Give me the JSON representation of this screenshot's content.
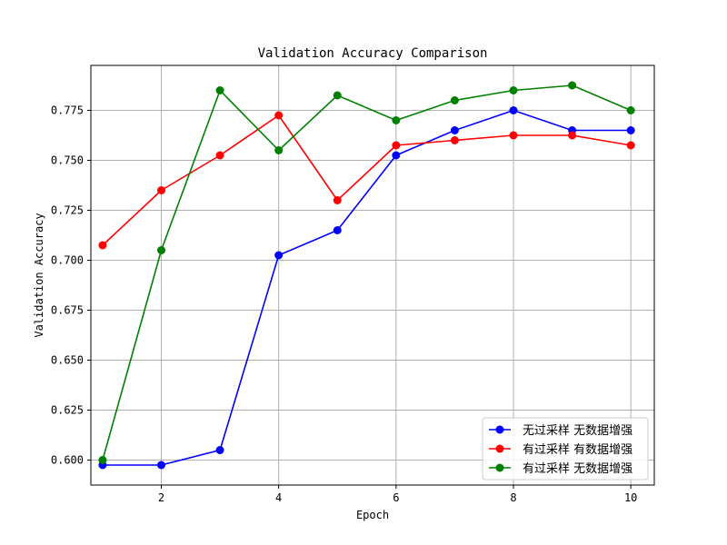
{
  "chart_data": {
    "type": "line",
    "title": "Validation Accuracy Comparison",
    "xlabel": "Epoch",
    "ylabel": "Validation Accuracy",
    "xlim": [
      0.8,
      10.4
    ],
    "ylim": [
      0.5875,
      0.7975
    ],
    "xticks": [
      2,
      4,
      6,
      8,
      10
    ],
    "yticks": [
      0.6,
      0.625,
      0.65,
      0.675,
      0.7,
      0.725,
      0.75,
      0.775
    ],
    "ytick_labels": [
      "0.600",
      "0.625",
      "0.650",
      "0.675",
      "0.700",
      "0.725",
      "0.750",
      "0.775"
    ],
    "grid": true,
    "legend_position": "bottom-right",
    "x": [
      1,
      2,
      3,
      4,
      5,
      6,
      7,
      8,
      9,
      10
    ],
    "series": [
      {
        "name": "无过采样 无数据增强",
        "color": "#0000ff",
        "values": [
          0.5975,
          0.5975,
          0.605,
          0.7025,
          0.715,
          0.7525,
          0.765,
          0.775,
          0.765,
          0.765
        ]
      },
      {
        "name": "有过采样 有数据增强",
        "color": "#ff0000",
        "values": [
          0.7075,
          0.735,
          0.7525,
          0.7725,
          0.73,
          0.7575,
          0.76,
          0.7625,
          0.7625,
          0.7575
        ]
      },
      {
        "name": "有过采样 无数据增强",
        "color": "#008000",
        "values": [
          0.6,
          0.705,
          0.785,
          0.755,
          0.7825,
          0.77,
          0.78,
          0.785,
          0.7875,
          0.775
        ]
      }
    ]
  }
}
